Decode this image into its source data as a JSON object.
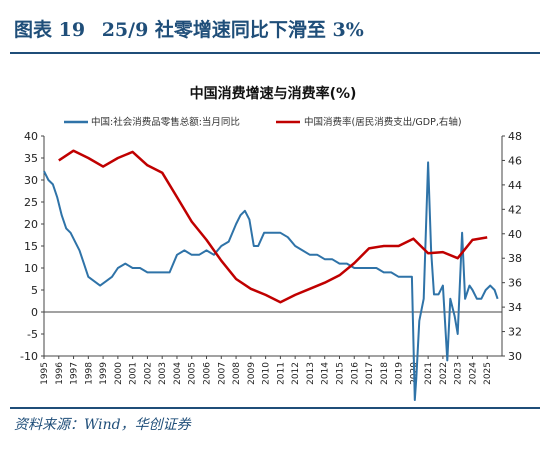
{
  "figure": {
    "label": "图表 19",
    "title": "25/9 社零增速同比下滑至 3%",
    "source": "资料来源：Wind，华创证券"
  },
  "colors": {
    "series1": "#2f73a8",
    "series2": "#c00000",
    "heading": "#1f4e79"
  },
  "chart_data": {
    "type": "line",
    "title": "中国消费增速与消费率(%)",
    "x_ticks": [
      "1995",
      "1996",
      "1997",
      "1998",
      "1999",
      "2000",
      "2001",
      "2002",
      "2003",
      "2004",
      "2005",
      "2006",
      "2007",
      "2008",
      "2009",
      "2010",
      "2011",
      "2012",
      "2013",
      "2014",
      "2015",
      "2016",
      "2017",
      "2018",
      "2019",
      "2020",
      "2021",
      "2022",
      "2023",
      "2024",
      "2025"
    ],
    "y_left": {
      "min": -10,
      "max": 40,
      "ticks": [
        -10,
        -5,
        0,
        5,
        10,
        15,
        20,
        25,
        30,
        35,
        40
      ]
    },
    "y_right": {
      "min": 30,
      "max": 48,
      "ticks": [
        30,
        32,
        34,
        36,
        38,
        40,
        42,
        44,
        46,
        48
      ]
    },
    "legend_position": "top",
    "grid": false,
    "series": [
      {
        "name": "中国:社会消费品零售总额:当月同比",
        "axis": "left",
        "x": [
          1995.0,
          1995.3,
          1995.6,
          1995.9,
          1996.2,
          1996.5,
          1996.8,
          1997.1,
          1997.4,
          1997.7,
          1998.0,
          1998.4,
          1998.8,
          1999.2,
          1999.6,
          2000.0,
          2000.5,
          2001.0,
          2001.5,
          2002.0,
          2002.5,
          2003.0,
          2003.5,
          2004.0,
          2004.5,
          2005.0,
          2005.5,
          2006.0,
          2006.5,
          2007.0,
          2007.5,
          2008.0,
          2008.3,
          2008.6,
          2008.9,
          2009.2,
          2009.5,
          2009.9,
          2010.3,
          2010.7,
          2011.0,
          2011.5,
          2012.0,
          2012.5,
          2013.0,
          2013.5,
          2014.0,
          2014.5,
          2015.0,
          2015.5,
          2016.0,
          2016.5,
          2017.0,
          2017.5,
          2018.0,
          2018.5,
          2019.0,
          2019.5,
          2019.9,
          2020.1,
          2020.2,
          2020.4,
          2020.7,
          2021.0,
          2021.2,
          2021.4,
          2021.7,
          2022.0,
          2022.3,
          2022.5,
          2022.8,
          2023.0,
          2023.3,
          2023.5,
          2023.8,
          2024.0,
          2024.3,
          2024.6,
          2024.9,
          2025.2,
          2025.5,
          2025.7
        ],
        "y": [
          32,
          30,
          29,
          26,
          22,
          19,
          18,
          16,
          14,
          11,
          8,
          7,
          6,
          7,
          8,
          10,
          11,
          10,
          10,
          9,
          9,
          9,
          9,
          13,
          14,
          13,
          13,
          14,
          13,
          15,
          16,
          20,
          22,
          23,
          21,
          15,
          15,
          18,
          18,
          18,
          18,
          17,
          15,
          14,
          13,
          13,
          12,
          12,
          11,
          11,
          10,
          10,
          10,
          10,
          9,
          9,
          8,
          8,
          8,
          -20,
          -15,
          -2,
          3,
          34,
          14,
          4,
          4,
          6,
          -11,
          3,
          -1,
          -5,
          18,
          3,
          6,
          5,
          3,
          3,
          5,
          6,
          5,
          3
        ]
      },
      {
        "name": "中国消费率(居民消费支出/GDP,右轴)",
        "axis": "right",
        "x": [
          1996,
          1997,
          1998,
          1999,
          2000,
          2001,
          2002,
          2003,
          2004,
          2005,
          2006,
          2007,
          2008,
          2009,
          2010,
          2011,
          2012,
          2013,
          2014,
          2015,
          2016,
          2017,
          2018,
          2019,
          2020,
          2021,
          2022,
          2023,
          2024,
          2025
        ],
        "y": [
          46,
          46.8,
          46.2,
          45.5,
          46.2,
          46.7,
          45.6,
          45,
          43,
          41,
          39.5,
          37.8,
          36.3,
          35.5,
          35,
          34.4,
          35,
          35.5,
          36,
          36.6,
          37.6,
          38.8,
          39,
          39,
          39.6,
          38.4,
          38.5,
          38,
          39.5,
          39.7
        ]
      }
    ]
  }
}
